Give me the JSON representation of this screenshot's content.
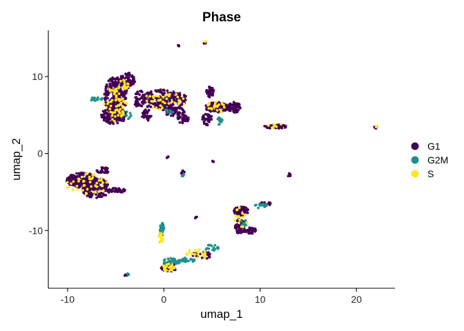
{
  "chart_data": {
    "type": "scatter",
    "title": "Phase",
    "xlabel": "umap_1",
    "ylabel": "umap_2",
    "xlim": [
      -12,
      24
    ],
    "ylim": [
      -17.5,
      16
    ],
    "xticks": [
      -10,
      0,
      10,
      20
    ],
    "xtick_labels": [
      "-10",
      "0",
      "10",
      "20"
    ],
    "yticks": [
      10,
      0,
      -10
    ],
    "ytick_labels": [
      "10",
      "0",
      "-10"
    ],
    "grid": false,
    "legend_position": "right",
    "series": [
      {
        "name": "G1",
        "color": "#440154",
        "clusters": [
          {
            "cx": -5.0,
            "cy": 7.5,
            "rx": 1.2,
            "ry": 2.5,
            "n": 260
          },
          {
            "cx": -5.2,
            "cy": 5.0,
            "rx": 1.3,
            "ry": 1.2,
            "n": 150
          },
          {
            "cx": -3.8,
            "cy": 9.5,
            "rx": 0.8,
            "ry": 1.0,
            "n": 80
          },
          {
            "cx": -2.5,
            "cy": 7.0,
            "rx": 0.6,
            "ry": 1.2,
            "n": 40
          },
          {
            "cx": -1.8,
            "cy": 5.0,
            "rx": 0.5,
            "ry": 0.8,
            "n": 30
          },
          {
            "cx": 0.0,
            "cy": 7.0,
            "rx": 2.5,
            "ry": 1.3,
            "n": 200
          },
          {
            "cx": 1.0,
            "cy": 5.5,
            "rx": 1.2,
            "ry": 0.6,
            "n": 60
          },
          {
            "cx": 2.0,
            "cy": 4.5,
            "rx": 0.6,
            "ry": 0.6,
            "n": 30
          },
          {
            "cx": 4.8,
            "cy": 8.0,
            "rx": 0.4,
            "ry": 0.7,
            "n": 40
          },
          {
            "cx": 5.5,
            "cy": 6.0,
            "rx": 1.2,
            "ry": 0.7,
            "n": 90
          },
          {
            "cx": 7.3,
            "cy": 6.0,
            "rx": 0.7,
            "ry": 0.7,
            "n": 70
          },
          {
            "cx": 4.5,
            "cy": 4.5,
            "rx": 0.5,
            "ry": 0.8,
            "n": 30
          },
          {
            "cx": 11.6,
            "cy": 3.5,
            "rx": 1.2,
            "ry": 0.25,
            "n": 40
          },
          {
            "cx": 22.0,
            "cy": 3.4,
            "rx": 0.15,
            "ry": 0.15,
            "n": 6
          },
          {
            "cx": -8.5,
            "cy": -3.5,
            "rx": 1.6,
            "ry": 1.0,
            "n": 230
          },
          {
            "cx": -7.0,
            "cy": -4.5,
            "rx": 1.5,
            "ry": 1.3,
            "n": 150
          },
          {
            "cx": -5.0,
            "cy": -4.8,
            "rx": 1.0,
            "ry": 0.3,
            "n": 40
          },
          {
            "cx": -6.3,
            "cy": -2.2,
            "rx": 0.7,
            "ry": 0.4,
            "n": 25
          },
          {
            "cx": 8.0,
            "cy": -7.5,
            "rx": 0.8,
            "ry": 0.6,
            "n": 60
          },
          {
            "cx": 7.9,
            "cy": -9.5,
            "rx": 0.5,
            "ry": 1.0,
            "n": 60
          },
          {
            "cx": 9.0,
            "cy": -10.0,
            "rx": 0.6,
            "ry": 0.4,
            "n": 30
          },
          {
            "cx": 1.5,
            "cy": 14.0,
            "rx": 0.1,
            "ry": 0.1,
            "n": 5
          },
          {
            "cx": 4.2,
            "cy": 14.4,
            "rx": 0.2,
            "ry": 0.1,
            "n": 5
          },
          {
            "cx": 0.4,
            "cy": -0.5,
            "rx": 0.15,
            "ry": 0.15,
            "n": 4
          },
          {
            "cx": 2.0,
            "cy": -2.5,
            "rx": 0.2,
            "ry": 0.3,
            "n": 6
          },
          {
            "cx": 5.1,
            "cy": -1.0,
            "rx": 0.1,
            "ry": 0.1,
            "n": 3
          },
          {
            "cx": 13.0,
            "cy": -2.8,
            "rx": 0.2,
            "ry": 0.2,
            "n": 5
          },
          {
            "cx": 3.3,
            "cy": -8.3,
            "rx": 0.15,
            "ry": 0.2,
            "n": 4
          },
          {
            "cx": -4.0,
            "cy": -15.8,
            "rx": 0.2,
            "ry": 0.1,
            "n": 4
          },
          {
            "cx": 0.5,
            "cy": -14.8,
            "rx": 0.8,
            "ry": 0.6,
            "n": 60
          },
          {
            "cx": 4.0,
            "cy": -13.2,
            "rx": 1.0,
            "ry": 0.5,
            "n": 20
          },
          {
            "cx": 10.5,
            "cy": -6.6,
            "rx": 0.8,
            "ry": 0.3,
            "n": 10
          }
        ]
      },
      {
        "name": "G2M",
        "color": "#21908C",
        "clusters": [
          {
            "cx": -7.0,
            "cy": 7.0,
            "rx": 0.7,
            "ry": 0.3,
            "n": 15
          },
          {
            "cx": -4.0,
            "cy": 5.0,
            "rx": 0.6,
            "ry": 0.6,
            "n": 10
          },
          {
            "cx": 0.5,
            "cy": 5.5,
            "rx": 0.6,
            "ry": 0.3,
            "n": 8
          },
          {
            "cx": 5.8,
            "cy": 4.2,
            "rx": 0.3,
            "ry": 0.5,
            "n": 12
          },
          {
            "cx": -0.2,
            "cy": -10.0,
            "rx": 0.25,
            "ry": 1.0,
            "n": 30
          },
          {
            "cx": 0.8,
            "cy": -14.0,
            "rx": 1.0,
            "ry": 0.4,
            "n": 45
          },
          {
            "cx": 2.5,
            "cy": -13.8,
            "rx": 0.8,
            "ry": 0.3,
            "n": 25
          },
          {
            "cx": 5.0,
            "cy": -12.2,
            "rx": 0.8,
            "ry": 0.4,
            "n": 15
          },
          {
            "cx": 10.0,
            "cy": -6.8,
            "rx": 0.8,
            "ry": 0.3,
            "n": 15
          },
          {
            "cx": 8.3,
            "cy": -9.0,
            "rx": 0.4,
            "ry": 0.4,
            "n": 8
          },
          {
            "cx": 2.0,
            "cy": -2.8,
            "rx": 0.15,
            "ry": 0.2,
            "n": 4
          },
          {
            "cx": -3.8,
            "cy": -15.7,
            "rx": 0.2,
            "ry": 0.1,
            "n": 4
          }
        ]
      },
      {
        "name": "S",
        "color": "#FDE725",
        "clusters": [
          {
            "cx": -5.0,
            "cy": 6.5,
            "rx": 1.2,
            "ry": 2.3,
            "n": 60
          },
          {
            "cx": -4.2,
            "cy": 9.0,
            "rx": 0.6,
            "ry": 0.8,
            "n": 15
          },
          {
            "cx": 0.0,
            "cy": 6.8,
            "rx": 2.2,
            "ry": 1.2,
            "n": 35
          },
          {
            "cx": 5.5,
            "cy": 6.0,
            "rx": 1.1,
            "ry": 0.8,
            "n": 20
          },
          {
            "cx": 11.5,
            "cy": 3.6,
            "rx": 1.0,
            "ry": 0.3,
            "n": 8
          },
          {
            "cx": -8.0,
            "cy": -4.0,
            "rx": 2.2,
            "ry": 1.4,
            "n": 45
          },
          {
            "cx": 8.0,
            "cy": -8.5,
            "rx": 0.8,
            "ry": 1.5,
            "n": 15
          },
          {
            "cx": -0.3,
            "cy": -11.0,
            "rx": 0.25,
            "ry": 0.7,
            "n": 18
          },
          {
            "cx": 0.5,
            "cy": -14.8,
            "rx": 0.7,
            "ry": 0.5,
            "n": 25
          },
          {
            "cx": 3.5,
            "cy": -13.0,
            "rx": 1.2,
            "ry": 0.6,
            "n": 20
          },
          {
            "cx": 22.1,
            "cy": 3.5,
            "rx": 0.1,
            "ry": 0.1,
            "n": 2
          },
          {
            "cx": 4.3,
            "cy": 14.6,
            "rx": 0.1,
            "ry": 0.1,
            "n": 3
          }
        ]
      }
    ]
  }
}
